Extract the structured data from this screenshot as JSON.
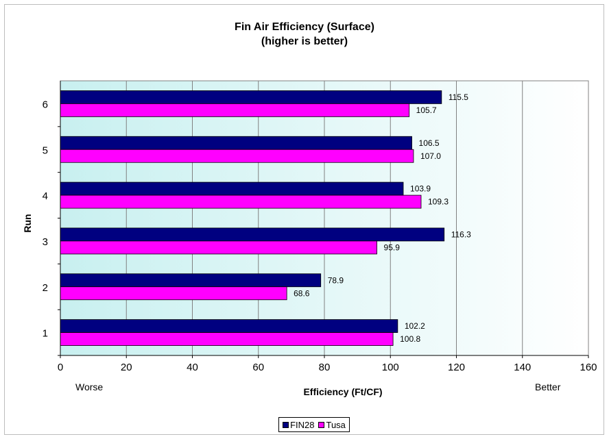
{
  "chart_data": {
    "type": "bar",
    "orientation": "horizontal",
    "title": "Fin Air Efficiency (Surface)",
    "subtitle": "(higher is better)",
    "xlabel": "Efficiency (Ft/CF)",
    "ylabel": "Run",
    "categories": [
      "1",
      "2",
      "3",
      "4",
      "5",
      "6"
    ],
    "series": [
      {
        "name": "FIN28",
        "color": "#000080",
        "values": [
          102.2,
          78.9,
          116.3,
          103.9,
          106.5,
          115.5
        ],
        "labels": [
          "102.2",
          "78.9",
          "116.3",
          "103.9",
          "106.5",
          "115.5"
        ]
      },
      {
        "name": "Tusa",
        "color": "#ff00ff",
        "values": [
          100.8,
          68.6,
          95.9,
          109.3,
          107.0,
          105.7
        ],
        "labels": [
          "100.8",
          "68.6",
          "95.9",
          "109.3",
          "107.0",
          "105.7"
        ]
      }
    ],
    "xlim": [
      0,
      160
    ],
    "x_ticks": [
      "0",
      "20",
      "40",
      "60",
      "80",
      "100",
      "120",
      "140",
      "160"
    ],
    "x_tick_values": [
      0,
      20,
      40,
      60,
      80,
      100,
      120,
      140,
      160
    ],
    "annotations": {
      "left": "Worse",
      "right": "Better"
    },
    "grid": true,
    "legend_position": "bottom",
    "plot_gradient": [
      "#c8f0f0",
      "#ffffff"
    ]
  }
}
